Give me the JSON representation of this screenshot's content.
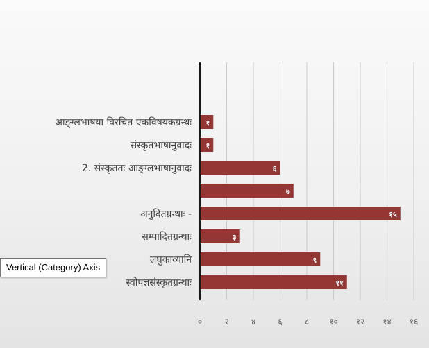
{
  "chart_data": {
    "type": "bar",
    "orientation": "horizontal",
    "categories": [
      "आङ्ग्लभाषया विरचित एकविषयकग्रन्थः",
      "संस्कृतभाषानुवादः",
      "2. संस्कृततः आङ्ग्लभाषानुवादः",
      "",
      "अनुदितग्रन्थाः -",
      "सम्पादितग्रन्थाः",
      "लघुकाव्यानि",
      "स्वोपज्ञसंस्कृतग्रन्थाः"
    ],
    "values": [
      1,
      1,
      6,
      7,
      15,
      3,
      9,
      11
    ],
    "data_labels": [
      "१",
      "१",
      "६",
      "७",
      "१५",
      "३",
      "९",
      "११"
    ],
    "xlim": [
      0,
      16
    ],
    "x_ticks": [
      "०",
      "२",
      "४",
      "६",
      "८",
      "१०",
      "१२",
      "१४",
      "१६"
    ],
    "grid": true,
    "bar_color": "#943634",
    "title": "",
    "xlabel": "",
    "ylabel": ""
  },
  "tooltip": {
    "text": "Vertical (Category) Axis"
  }
}
